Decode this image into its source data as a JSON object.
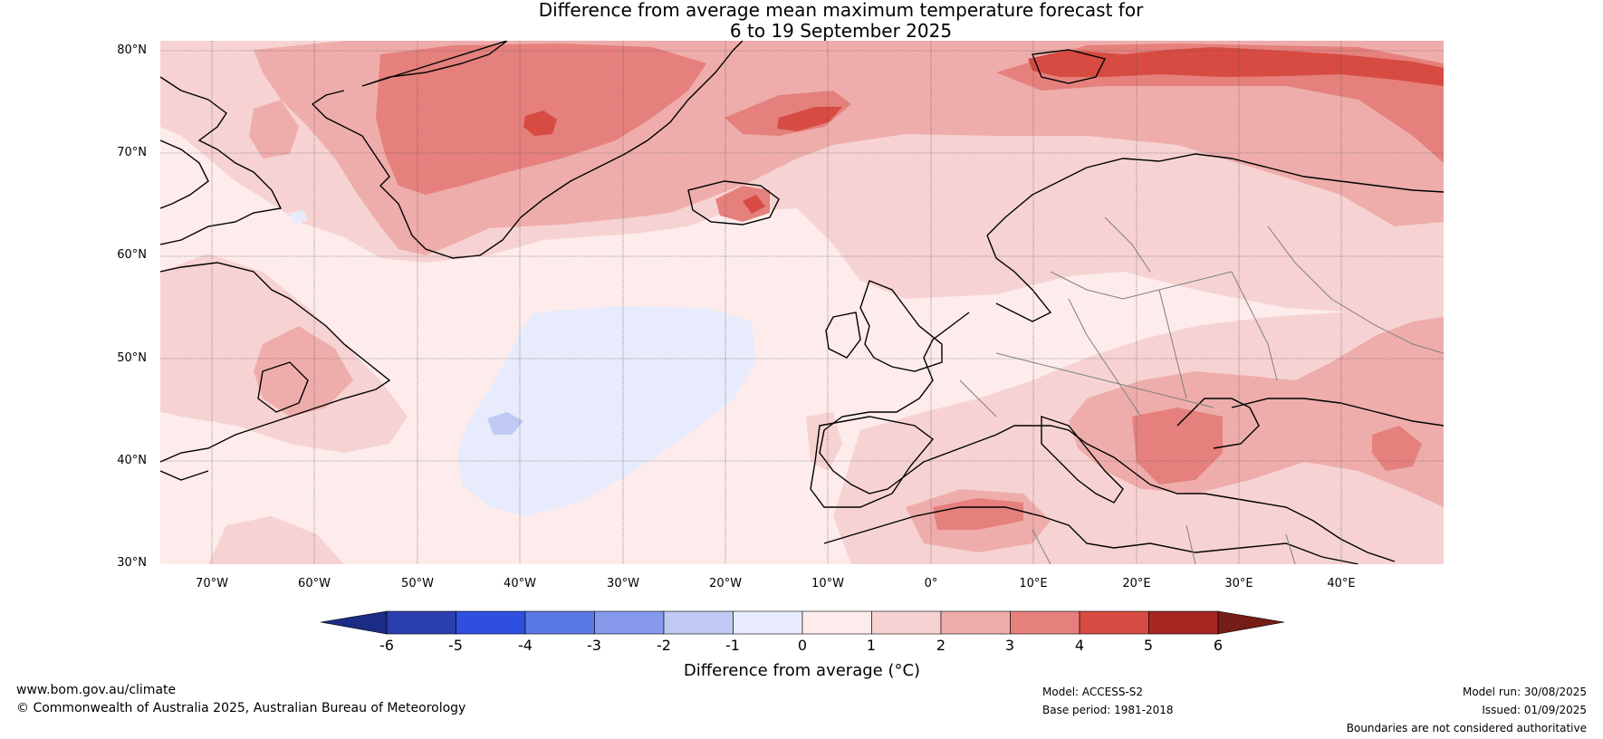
{
  "title": {
    "line1": "Difference from average mean maximum temperature forecast for",
    "line2": "6 to 19 September 2025"
  },
  "map": {
    "latitude_labels": [
      "80°N",
      "70°N",
      "60°N",
      "50°N",
      "40°N",
      "30°N"
    ],
    "longitude_labels": [
      "70°W",
      "60°W",
      "50°W",
      "40°W",
      "30°W",
      "20°W",
      "10°W",
      "0°",
      "10°E",
      "20°E",
      "30°E",
      "40°E"
    ],
    "extent_degrees": {
      "lon_min": -75,
      "lon_max": 50,
      "lat_min": 30,
      "lat_max": 81
    },
    "colors": {
      "land_border": "#000000",
      "country_border": "#808080",
      "gridline": "#555555"
    }
  },
  "colorbar": {
    "title": "Difference from average (°C)",
    "tick_labels": [
      "-6",
      "-5",
      "-4",
      "-3",
      "-2",
      "-1",
      "0",
      "1",
      "2",
      "3",
      "4",
      "5",
      "6"
    ],
    "extend_low_color": "#1a2c84",
    "bin_colors": [
      "#2a3eb0",
      "#2f4fe0",
      "#5b78e8",
      "#8699ec",
      "#c0c9f3",
      "#e7ebfb",
      "#fdeceb",
      "#f6d3d2",
      "#eeadab",
      "#e5807c",
      "#d74b42",
      "#a82722"
    ],
    "extend_high_color": "#761d18"
  },
  "footer": {
    "website": "www.bom.gov.au/climate",
    "copyright": "© Commonwealth of Australia 2025, Australian Bureau of Meteorology",
    "model": "Model: ACCESS-S2",
    "base_period": "Base period: 1981-2018",
    "model_run": "Model run: 30/08/2025",
    "issued": "Issued: 01/09/2025",
    "disclaimer": "Boundaries are not considered authoritative"
  }
}
